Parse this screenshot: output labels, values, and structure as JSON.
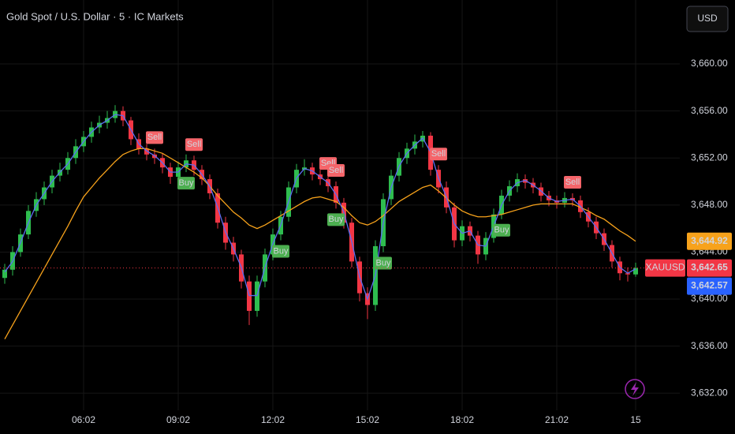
{
  "header": {
    "title": "Gold Spot / U.S. Dollar · 5 · IC Markets",
    "currency_button": "USD"
  },
  "chart_data": {
    "type": "candlestick",
    "categories": [
      null,
      null,
      null,
      null,
      null,
      null,
      null,
      null,
      null,
      null,
      "06:02",
      null,
      null,
      null,
      null,
      null,
      null,
      null,
      null,
      null,
      null,
      null,
      "09:02",
      null,
      null,
      null,
      null,
      null,
      null,
      null,
      null,
      null,
      null,
      null,
      "12:02",
      null,
      null,
      null,
      null,
      null,
      null,
      null,
      null,
      null,
      null,
      null,
      "15:02",
      null,
      null,
      null,
      null,
      null,
      null,
      null,
      null,
      null,
      null,
      null,
      "18:02",
      null,
      null,
      null,
      null,
      null,
      null,
      null,
      null,
      null,
      null,
      null,
      "21:02",
      null,
      null,
      null,
      null,
      null,
      null,
      null,
      null,
      null,
      "15"
    ],
    "open": [
      3641.8,
      3642.5,
      3644,
      3645.5,
      3647.5,
      3648.5,
      3649.5,
      3650.5,
      3651,
      3652,
      3653,
      3653.8,
      3654.6,
      3655,
      3655.4,
      3656,
      3655.2,
      3653.6,
      3652.8,
      3652.3,
      3652,
      3651.2,
      3650.4,
      3651.2,
      3651.8,
      3651,
      3650.2,
      3649,
      3646.5,
      3644.8,
      3643.8,
      3641.5,
      3639,
      3641.5,
      3643.8,
      3645.5,
      3647,
      3649.5,
      3651,
      3651.2,
      3650.6,
      3650.2,
      3649.6,
      3648.2,
      3646.5,
      3643.2,
      3640.5,
      3639.5,
      3644.5,
      3648.5,
      3650.5,
      3652,
      3652.8,
      3653.4,
      3653.9,
      3651,
      3649.5,
      3647.8,
      3645,
      3646.2,
      3645.4,
      3643.8,
      3645.2,
      3647.2,
      3648.8,
      3649.6,
      3650.2,
      3649.9,
      3649.5,
      3648.8,
      3648.4,
      3648.2,
      3648.6,
      3648.4,
      3647.4,
      3646.6,
      3645.6,
      3644.6,
      3643.2,
      3642.2,
      3642.1
    ],
    "high": [
      3643,
      3644.5,
      3646,
      3648,
      3649.1,
      3650,
      3651,
      3651.6,
      3652.5,
      3653.6,
      3654.3,
      3655.1,
      3655.6,
      3656,
      3656.5,
      3656.4,
      3655.5,
      3654.1,
      3653.2,
      3652.8,
      3652.4,
      3651.6,
      3651.7,
      3652.3,
      3652.2,
      3651.4,
      3650.6,
      3649.4,
      3647,
      3645.3,
      3644.2,
      3642,
      3642,
      3644.3,
      3646,
      3647.5,
      3650,
      3651.5,
      3651.9,
      3651.6,
      3651,
      3650.6,
      3650,
      3648.6,
      3646.9,
      3643.6,
      3641,
      3645,
      3649,
      3651,
      3652.5,
      3653.3,
      3654,
      3654.3,
      3654.2,
      3651.4,
      3650,
      3648.2,
      3646.7,
      3646.6,
      3645.8,
      3645.7,
      3647.7,
      3649.3,
      3650.1,
      3650.7,
      3650.6,
      3650.3,
      3649.9,
      3649.2,
      3648.8,
      3649.1,
      3649,
      3648.8,
      3647.8,
      3647,
      3646,
      3645,
      3643.6,
      3642.7,
      3643.1
    ],
    "low": [
      3641.3,
      3642,
      3643.6,
      3645.1,
      3647,
      3648,
      3649,
      3650,
      3650.6,
      3651.5,
      3652.5,
      3653.3,
      3654.1,
      3654.5,
      3655,
      3654.7,
      3653.1,
      3652.3,
      3651.8,
      3651.5,
      3650.7,
      3649.8,
      3650,
      3650.8,
      3650.5,
      3649.7,
      3648.5,
      3646,
      3644.2,
      3643.2,
      3640.9,
      3637.8,
      3638.5,
      3641,
      3643.3,
      3645,
      3646.6,
      3649,
      3650.5,
      3650.1,
      3649.7,
      3649.1,
      3647.7,
      3646,
      3642.7,
      3639.8,
      3638.3,
      3639,
      3644,
      3648,
      3650,
      3651.5,
      3652.3,
      3652.9,
      3650.5,
      3649,
      3647.3,
      3644.4,
      3644.5,
      3644.9,
      3643,
      3643.3,
      3644.8,
      3646.8,
      3648.3,
      3649.1,
      3649.4,
      3649,
      3648.3,
      3647.9,
      3647.7,
      3647.8,
      3647.9,
      3646.9,
      3646.1,
      3645.1,
      3644.1,
      3642.7,
      3641.6,
      3641.5,
      3641.9
    ],
    "close": [
      3642.5,
      3644,
      3645.5,
      3647.5,
      3648.5,
      3649.5,
      3650.5,
      3651,
      3652,
      3653,
      3653.8,
      3654.6,
      3655,
      3655.4,
      3656,
      3655.2,
      3653.6,
      3652.8,
      3652.3,
      3652,
      3651.2,
      3650.4,
      3651.2,
      3651.8,
      3651,
      3650.2,
      3649,
      3646.5,
      3644.8,
      3643.8,
      3641.5,
      3639,
      3641.5,
      3643.8,
      3645.5,
      3647,
      3649.5,
      3651,
      3651.2,
      3650.6,
      3650.2,
      3649.6,
      3648.2,
      3646.5,
      3643.2,
      3640.5,
      3639.5,
      3644.5,
      3648.5,
      3650.5,
      3652,
      3652.8,
      3653.4,
      3653.9,
      3651,
      3649.5,
      3647.8,
      3645,
      3646.2,
      3645.4,
      3643.8,
      3645.2,
      3647.2,
      3648.8,
      3649.6,
      3650.2,
      3649.9,
      3649.5,
      3648.8,
      3648.4,
      3648.2,
      3648.6,
      3648.4,
      3647.4,
      3646.6,
      3645.6,
      3644.6,
      3643.2,
      3642.2,
      3642.1,
      3642.65
    ],
    "up_color": "#2ebd4f",
    "down_color": "#f23645",
    "lines": [
      {
        "color": "#f7a21b",
        "values": [
          3636.6,
          3637.8,
          3639,
          3640.2,
          3641.4,
          3642.6,
          3643.8,
          3645,
          3646.2,
          3647.5,
          3648.7,
          3649.5,
          3650.3,
          3651,
          3651.7,
          3652.3,
          3652.6,
          3652.8,
          3652.8,
          3652.6,
          3652.4,
          3652,
          3651.6,
          3651.2,
          3650.8,
          3650.3,
          3649.6,
          3648.8,
          3648.1,
          3647.4,
          3646.9,
          3646.3,
          3646,
          3646.3,
          3646.7,
          3647.1,
          3647.5,
          3647.9,
          3648.3,
          3648.6,
          3648.7,
          3648.5,
          3648.3,
          3647.8,
          3647.1,
          3646.5,
          3646.3,
          3646.6,
          3647.1,
          3647.7,
          3648.3,
          3648.7,
          3649.1,
          3649.5,
          3649.7,
          3649.2,
          3648.6,
          3648,
          3647.5,
          3647.2,
          3647,
          3647,
          3647.1,
          3647.2,
          3647.4,
          3647.6,
          3647.8,
          3648,
          3648.1,
          3648.1,
          3648.1,
          3648.1,
          3648.1,
          3647.8,
          3647.5,
          3647.1,
          3646.8,
          3646.3,
          3645.8,
          3645.4,
          3644.92
        ]
      },
      {
        "color": "#5b6cf0",
        "values": [
          3642.3,
          3643.2,
          3644.8,
          3646.5,
          3648,
          3649,
          3650,
          3650.8,
          3651.5,
          3652.5,
          3653.4,
          3654.2,
          3654.8,
          3655.2,
          3655.7,
          3655.6,
          3654.4,
          3653.2,
          3652.6,
          3652.2,
          3651.6,
          3650.8,
          3650.8,
          3651.5,
          3651.4,
          3650.6,
          3649.6,
          3647.8,
          3645.7,
          3644.3,
          3642.7,
          3640.3,
          3640.3,
          3642.7,
          3644.7,
          3646.3,
          3648.3,
          3650.3,
          3651.1,
          3650.9,
          3650.4,
          3649.9,
          3648.9,
          3647.4,
          3644.9,
          3641.9,
          3640,
          3642,
          3646.5,
          3649.5,
          3651.3,
          3652.4,
          3653.1,
          3653.7,
          3652.5,
          3650.3,
          3648.7,
          3646.4,
          3645.6,
          3645.8,
          3644.6,
          3644.5,
          3646.2,
          3648,
          3649.2,
          3649.9,
          3650.1,
          3649.7,
          3649.2,
          3648.6,
          3648.3,
          3648.4,
          3648.5,
          3647.9,
          3647,
          3646.1,
          3645.1,
          3643.9,
          3642.7,
          3642.2,
          3642.57
        ]
      }
    ],
    "sell": [
      null,
      null,
      null,
      null,
      null,
      null,
      null,
      null,
      null,
      null,
      null,
      null,
      null,
      null,
      null,
      null,
      null,
      null,
      null,
      "Sell",
      null,
      null,
      null,
      null,
      "Sell",
      null,
      null,
      null,
      null,
      null,
      null,
      null,
      null,
      null,
      null,
      null,
      null,
      null,
      null,
      null,
      null,
      "Sell",
      "Sell",
      null,
      null,
      null,
      null,
      null,
      null,
      null,
      null,
      null,
      null,
      null,
      null,
      "Sell",
      null,
      null,
      null,
      null,
      null,
      null,
      null,
      null,
      null,
      null,
      null,
      null,
      null,
      null,
      null,
      null,
      "Sell",
      null,
      null,
      null,
      null,
      null,
      null,
      null,
      null
    ],
    "buy": [
      null,
      null,
      null,
      null,
      null,
      null,
      null,
      null,
      null,
      null,
      null,
      null,
      null,
      null,
      null,
      null,
      null,
      null,
      null,
      null,
      null,
      null,
      null,
      "Buy",
      null,
      null,
      null,
      null,
      null,
      null,
      null,
      null,
      null,
      null,
      null,
      "Buy",
      null,
      null,
      null,
      null,
      null,
      null,
      "Buy",
      null,
      null,
      null,
      null,
      null,
      "Buy",
      null,
      null,
      null,
      null,
      null,
      null,
      null,
      null,
      null,
      null,
      null,
      null,
      null,
      null,
      "Buy",
      null,
      null,
      null,
      null,
      null,
      null,
      null,
      null,
      null,
      null,
      null,
      null,
      null,
      null,
      null,
      null,
      null
    ],
    "sell_color": "#f5656a",
    "buy_color": "#4caf50",
    "ylim": [
      3630.54,
      3665.44
    ],
    "yticks": [
      {
        "value": 3632,
        "label": "3,632.00"
      },
      {
        "value": 3636,
        "label": "3,636.00"
      },
      {
        "value": 3640,
        "label": "3,640.00"
      },
      {
        "value": 3644,
        "label": "3,644.00"
      },
      {
        "value": 3648,
        "label": "3,648.00"
      },
      {
        "value": 3652,
        "label": "3,652.00"
      },
      {
        "value": 3656,
        "label": "3,656.00"
      },
      {
        "value": 3660,
        "label": "3,660.00"
      }
    ],
    "grid": true,
    "price_labels": [
      {
        "value": 3644.92,
        "label": "3,644.92",
        "color": "#f7a21b"
      },
      {
        "name": "XAUUSD",
        "value": 3642.65,
        "label": "3,642.65",
        "color": "#f23645"
      },
      {
        "value": 3642.57,
        "label": "3,642.57",
        "color": "#2962ff"
      }
    ]
  }
}
